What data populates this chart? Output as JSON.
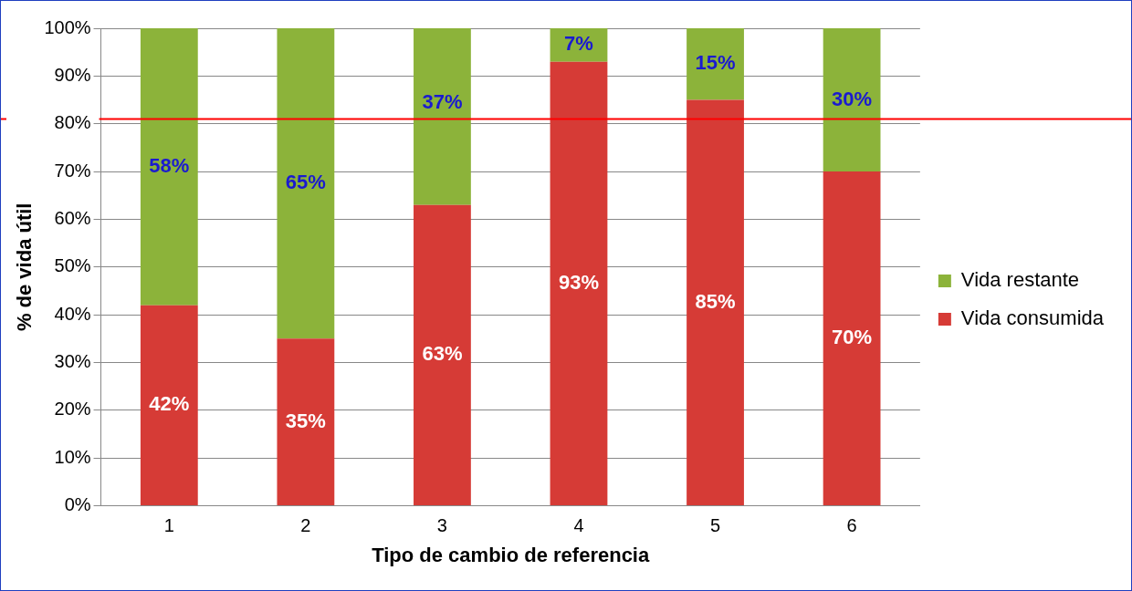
{
  "chart_data": {
    "type": "bar",
    "stacked": true,
    "xlabel": "Tipo de cambio de referencia",
    "ylabel": "% de vida útil",
    "categories": [
      "1",
      "2",
      "3",
      "4",
      "5",
      "6"
    ],
    "series": [
      {
        "name": "Vida consumida",
        "color": "#d63b36",
        "values": [
          42,
          35,
          63,
          93,
          85,
          70
        ],
        "value_labels": [
          "42%",
          "35%",
          "63%",
          "93%",
          "85%",
          "70%"
        ]
      },
      {
        "name": "Vida restante",
        "color": "#8cb33a",
        "values": [
          58,
          65,
          37,
          7,
          15,
          30
        ],
        "value_labels": [
          "58%",
          "65%",
          "37%",
          "7%",
          "15%",
          "30%"
        ]
      }
    ],
    "ylim": [
      0,
      100
    ],
    "yticks": [
      {
        "value": 0,
        "label": "0%"
      },
      {
        "value": 10,
        "label": "10%"
      },
      {
        "value": 20,
        "label": "20%"
      },
      {
        "value": 30,
        "label": "30%"
      },
      {
        "value": 40,
        "label": "40%"
      },
      {
        "value": 50,
        "label": "50%"
      },
      {
        "value": 60,
        "label": "60%"
      },
      {
        "value": 70,
        "label": "70%"
      },
      {
        "value": 80,
        "label": "80%"
      },
      {
        "value": 90,
        "label": "90%"
      },
      {
        "value": 100,
        "label": "100%"
      }
    ],
    "grid": "y",
    "legend": "right",
    "ref_lines": [
      {
        "axis": "y",
        "value": 81,
        "color": "#ff0000"
      }
    ]
  }
}
